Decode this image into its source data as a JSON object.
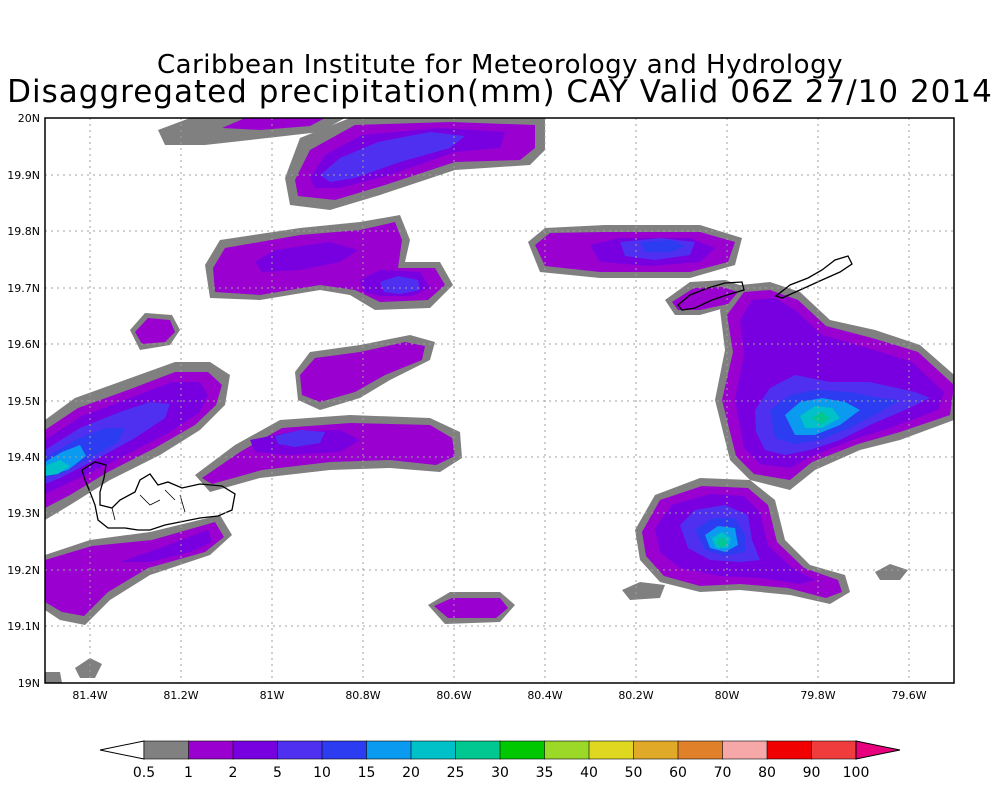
{
  "title": {
    "line1": "Caribbean Institute for Meteorology and Hydrology",
    "line2": "Disaggregated precipitation(mm) CAY Valid 06Z 27/10 2014"
  },
  "map": {
    "lon_range": [
      -81.5,
      -79.5
    ],
    "lat_range": [
      19.0,
      20.0
    ],
    "grid": "dotted",
    "lat_labels": [
      "19N",
      "19.1N",
      "19.2N",
      "19.3N",
      "19.4N",
      "19.5N",
      "19.6N",
      "19.7N",
      "19.8N",
      "19.9N",
      "20N"
    ],
    "lon_labels": [
      "81.4W",
      "81.2W",
      "81W",
      "80.8W",
      "80.6W",
      "80.4W",
      "80.2W",
      "80W",
      "79.8W",
      "79.6W"
    ],
    "islands": [
      "Grand Cayman",
      "Little Cayman",
      "Cayman Brac"
    ]
  },
  "legend": {
    "labels": [
      "0.5",
      "1",
      "2",
      "5",
      "10",
      "15",
      "20",
      "25",
      "30",
      "35",
      "40",
      "50",
      "60",
      "70",
      "80",
      "90",
      "100"
    ],
    "colors": [
      "#808080",
      "#9a00d0",
      "#7800e0",
      "#5030f0",
      "#2c3cf0",
      "#0a9af0",
      "#00c0c8",
      "#00c890",
      "#00c800",
      "#9cd828",
      "#e0d820",
      "#e0aa28",
      "#e08028",
      "#f6a8a8",
      "#f00000",
      "#f03c3c"
    ],
    "low_cap_color": "#ffffff",
    "high_cap_color": "#e8007c"
  }
}
